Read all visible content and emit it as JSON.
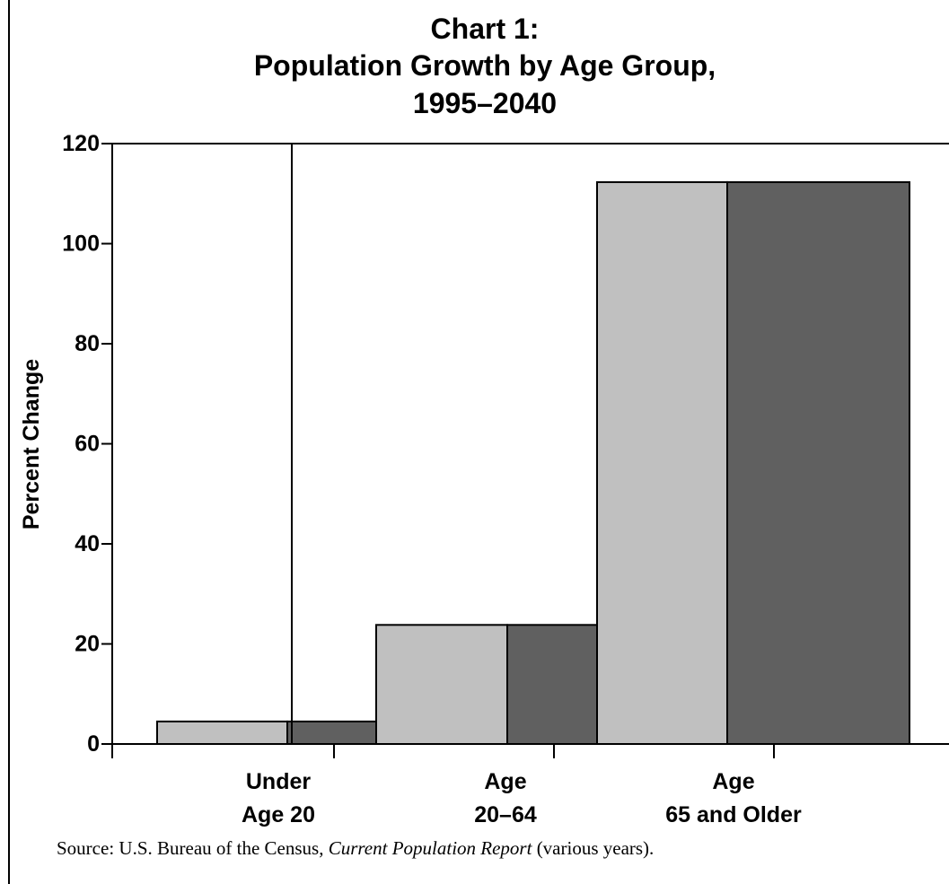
{
  "chart_data": {
    "type": "bar",
    "title": [
      "Chart 1:",
      "Population Growth by Age Group,",
      "1995–2040"
    ],
    "ylabel": "Percent Change",
    "xlabel": "",
    "ylim": [
      0,
      120
    ],
    "yticks": [
      0,
      20,
      40,
      60,
      80,
      100,
      120
    ],
    "categories": [
      [
        "Under",
        "Age 20"
      ],
      [
        "Age",
        "20–64"
      ],
      [
        "Age",
        "65 and Older"
      ]
    ],
    "series": [
      {
        "color": "#c0c0c0",
        "values": [
          4.5,
          23.8,
          112.3
        ]
      },
      {
        "color": "#606060",
        "values": [
          4.5,
          23.8,
          112.3
        ]
      }
    ],
    "grid": false,
    "legend": "none"
  },
  "source": {
    "prefix": "Source: U.S. Bureau of the Census, ",
    "italic": "Current Population Report",
    "suffix": " (various years)."
  }
}
